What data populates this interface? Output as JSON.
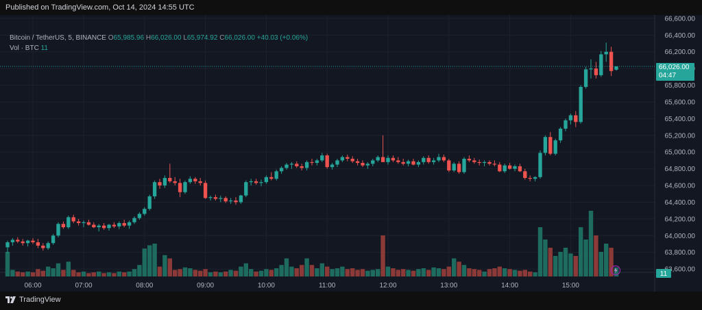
{
  "header": {
    "published": "Published on TradingView.com, Oct 14, 2024 14:55 UTC"
  },
  "legend": {
    "symbol": "Bitcoin / TetherUS, 5, BINANCE",
    "open_label": "O",
    "open": "65,985.96",
    "high_label": "H",
    "high": "66,026.00",
    "low_label": "L",
    "low": "65,974.92",
    "close_label": "C",
    "close": "66,026.00",
    "change": "+40.03 (+0.06%)",
    "volume_label": "Vol · BTC",
    "volume": "11"
  },
  "price_tag": {
    "price": "66,026.00",
    "countdown": "04:47"
  },
  "volume_tag": "11",
  "footer": {
    "brand": "TradingView"
  },
  "colors": {
    "up": "#26a69a",
    "down": "#ef5350",
    "volume_up": "#1e6b60",
    "volume_down": "#8c3a37",
    "grid": "#1e222d",
    "background": "#131722"
  },
  "chart_data": {
    "type": "candlestick",
    "symbol": "Bitcoin / TetherUS",
    "interval": "5",
    "exchange": "BINANCE",
    "x_ticks": [
      "06:00",
      "07:00",
      "08:00",
      "09:00",
      "10:00",
      "11:00",
      "12:00",
      "13:00",
      "14:00",
      "15:00"
    ],
    "y_ticks": [
      63600,
      63800,
      64000,
      64200,
      64400,
      64600,
      64800,
      65000,
      65200,
      65400,
      65600,
      65800,
      66000,
      66200,
      66400,
      66600
    ],
    "y_tick_labels": [
      "63,600.00",
      "63,800.00",
      "64,000.00",
      "64,200.00",
      "64,400.00",
      "64,600.00",
      "64,800.00",
      "65,000.00",
      "65,200.00",
      "65,400.00",
      "65,600.00",
      "65,800.00",
      "66,000.00",
      "66,200.00",
      "66,400.00",
      "66,600.00"
    ],
    "ylim": [
      63560,
      66640
    ],
    "current_price": 66026,
    "candles": [
      {
        "o": 63860,
        "h": 63940,
        "l": 63790,
        "c": 63920,
        "v": 30
      },
      {
        "o": 63920,
        "h": 63970,
        "l": 63880,
        "c": 63950,
        "v": 8
      },
      {
        "o": 63950,
        "h": 63980,
        "l": 63910,
        "c": 63930,
        "v": 6
      },
      {
        "o": 63930,
        "h": 63960,
        "l": 63880,
        "c": 63910,
        "v": 5
      },
      {
        "o": 63910,
        "h": 63950,
        "l": 63870,
        "c": 63940,
        "v": 6
      },
      {
        "o": 63940,
        "h": 63970,
        "l": 63900,
        "c": 63920,
        "v": 5
      },
      {
        "o": 63920,
        "h": 63960,
        "l": 63850,
        "c": 63880,
        "v": 9
      },
      {
        "o": 63880,
        "h": 63910,
        "l": 63820,
        "c": 63850,
        "v": 7
      },
      {
        "o": 63850,
        "h": 63930,
        "l": 63830,
        "c": 63910,
        "v": 12
      },
      {
        "o": 63910,
        "h": 64020,
        "l": 63890,
        "c": 64000,
        "v": 10
      },
      {
        "o": 64000,
        "h": 64160,
        "l": 63980,
        "c": 64140,
        "v": 16
      },
      {
        "o": 64140,
        "h": 64170,
        "l": 64080,
        "c": 64100,
        "v": 8
      },
      {
        "o": 64100,
        "h": 64240,
        "l": 64080,
        "c": 64220,
        "v": 18
      },
      {
        "o": 64220,
        "h": 64250,
        "l": 64150,
        "c": 64170,
        "v": 8
      },
      {
        "o": 64170,
        "h": 64200,
        "l": 64120,
        "c": 64150,
        "v": 5
      },
      {
        "o": 64150,
        "h": 64180,
        "l": 64100,
        "c": 64160,
        "v": 6
      },
      {
        "o": 64160,
        "h": 64190,
        "l": 64120,
        "c": 64130,
        "v": 4
      },
      {
        "o": 64130,
        "h": 64160,
        "l": 64090,
        "c": 64100,
        "v": 5
      },
      {
        "o": 64100,
        "h": 64140,
        "l": 64050,
        "c": 64120,
        "v": 6
      },
      {
        "o": 64120,
        "h": 64150,
        "l": 64070,
        "c": 64090,
        "v": 4
      },
      {
        "o": 64090,
        "h": 64140,
        "l": 64060,
        "c": 64130,
        "v": 5
      },
      {
        "o": 64130,
        "h": 64160,
        "l": 64090,
        "c": 64110,
        "v": 4
      },
      {
        "o": 64110,
        "h": 64170,
        "l": 64080,
        "c": 64150,
        "v": 6
      },
      {
        "o": 64150,
        "h": 64190,
        "l": 64100,
        "c": 64120,
        "v": 5
      },
      {
        "o": 64120,
        "h": 64180,
        "l": 64080,
        "c": 64160,
        "v": 6
      },
      {
        "o": 64160,
        "h": 64230,
        "l": 64140,
        "c": 64210,
        "v": 9
      },
      {
        "o": 64210,
        "h": 64280,
        "l": 64190,
        "c": 64260,
        "v": 14
      },
      {
        "o": 64260,
        "h": 64340,
        "l": 64240,
        "c": 64320,
        "v": 34
      },
      {
        "o": 64320,
        "h": 64490,
        "l": 64300,
        "c": 64470,
        "v": 38
      },
      {
        "o": 64470,
        "h": 64660,
        "l": 64440,
        "c": 64640,
        "v": 40
      },
      {
        "o": 64640,
        "h": 64680,
        "l": 64560,
        "c": 64600,
        "v": 12
      },
      {
        "o": 64600,
        "h": 64720,
        "l": 64570,
        "c": 64690,
        "v": 26
      },
      {
        "o": 64690,
        "h": 64860,
        "l": 64630,
        "c": 64650,
        "v": 22
      },
      {
        "o": 64650,
        "h": 64700,
        "l": 64600,
        "c": 64630,
        "v": 8
      },
      {
        "o": 64630,
        "h": 64680,
        "l": 64460,
        "c": 64520,
        "v": 9
      },
      {
        "o": 64520,
        "h": 64660,
        "l": 64500,
        "c": 64640,
        "v": 11
      },
      {
        "o": 64640,
        "h": 64710,
        "l": 64620,
        "c": 64680,
        "v": 10
      },
      {
        "o": 64680,
        "h": 64700,
        "l": 64620,
        "c": 64650,
        "v": 8
      },
      {
        "o": 64650,
        "h": 64690,
        "l": 64600,
        "c": 64630,
        "v": 7
      },
      {
        "o": 64630,
        "h": 64660,
        "l": 64440,
        "c": 64450,
        "v": 9
      },
      {
        "o": 64450,
        "h": 64480,
        "l": 64420,
        "c": 64460,
        "v": 5
      },
      {
        "o": 64460,
        "h": 64490,
        "l": 64420,
        "c": 64440,
        "v": 6
      },
      {
        "o": 64440,
        "h": 64480,
        "l": 64400,
        "c": 64450,
        "v": 5
      },
      {
        "o": 64450,
        "h": 64470,
        "l": 64390,
        "c": 64410,
        "v": 6
      },
      {
        "o": 64410,
        "h": 64450,
        "l": 64380,
        "c": 64420,
        "v": 8
      },
      {
        "o": 64420,
        "h": 64460,
        "l": 64370,
        "c": 64400,
        "v": 7
      },
      {
        "o": 64400,
        "h": 64490,
        "l": 64380,
        "c": 64480,
        "v": 12
      },
      {
        "o": 64480,
        "h": 64660,
        "l": 64460,
        "c": 64640,
        "v": 16
      },
      {
        "o": 64640,
        "h": 64680,
        "l": 64600,
        "c": 64650,
        "v": 9
      },
      {
        "o": 64650,
        "h": 64680,
        "l": 64610,
        "c": 64630,
        "v": 6
      },
      {
        "o": 64630,
        "h": 64670,
        "l": 64590,
        "c": 64640,
        "v": 7
      },
      {
        "o": 64640,
        "h": 64720,
        "l": 64620,
        "c": 64700,
        "v": 9
      },
      {
        "o": 64700,
        "h": 64760,
        "l": 64660,
        "c": 64680,
        "v": 8
      },
      {
        "o": 64680,
        "h": 64790,
        "l": 64660,
        "c": 64770,
        "v": 10
      },
      {
        "o": 64770,
        "h": 64830,
        "l": 64740,
        "c": 64810,
        "v": 14
      },
      {
        "o": 64810,
        "h": 64870,
        "l": 64790,
        "c": 64850,
        "v": 22
      },
      {
        "o": 64850,
        "h": 64880,
        "l": 64800,
        "c": 64860,
        "v": 12
      },
      {
        "o": 64860,
        "h": 64890,
        "l": 64810,
        "c": 64830,
        "v": 10
      },
      {
        "o": 64830,
        "h": 64860,
        "l": 64780,
        "c": 64810,
        "v": 14
      },
      {
        "o": 64810,
        "h": 64900,
        "l": 64780,
        "c": 64880,
        "v": 22
      },
      {
        "o": 64880,
        "h": 64920,
        "l": 64840,
        "c": 64870,
        "v": 14
      },
      {
        "o": 64870,
        "h": 64920,
        "l": 64840,
        "c": 64900,
        "v": 10
      },
      {
        "o": 64900,
        "h": 64990,
        "l": 64880,
        "c": 64960,
        "v": 16
      },
      {
        "o": 64960,
        "h": 64980,
        "l": 64800,
        "c": 64820,
        "v": 12
      },
      {
        "o": 64820,
        "h": 64870,
        "l": 64790,
        "c": 64850,
        "v": 9
      },
      {
        "o": 64850,
        "h": 64920,
        "l": 64820,
        "c": 64900,
        "v": 10
      },
      {
        "o": 64900,
        "h": 64960,
        "l": 64880,
        "c": 64940,
        "v": 12
      },
      {
        "o": 64940,
        "h": 64970,
        "l": 64890,
        "c": 64920,
        "v": 9
      },
      {
        "o": 64920,
        "h": 64950,
        "l": 64870,
        "c": 64890,
        "v": 10
      },
      {
        "o": 64890,
        "h": 64920,
        "l": 64840,
        "c": 64870,
        "v": 8
      },
      {
        "o": 64870,
        "h": 64900,
        "l": 64820,
        "c": 64840,
        "v": 9
      },
      {
        "o": 64840,
        "h": 64880,
        "l": 64800,
        "c": 64860,
        "v": 7
      },
      {
        "o": 64860,
        "h": 64920,
        "l": 64830,
        "c": 64900,
        "v": 8
      },
      {
        "o": 64900,
        "h": 64960,
        "l": 64880,
        "c": 64940,
        "v": 9
      },
      {
        "o": 64940,
        "h": 65200,
        "l": 64880,
        "c": 64880,
        "v": 50
      },
      {
        "o": 64880,
        "h": 64960,
        "l": 64850,
        "c": 64930,
        "v": 12
      },
      {
        "o": 64930,
        "h": 64960,
        "l": 64880,
        "c": 64900,
        "v": 10
      },
      {
        "o": 64900,
        "h": 64940,
        "l": 64860,
        "c": 64880,
        "v": 8
      },
      {
        "o": 64880,
        "h": 64920,
        "l": 64840,
        "c": 64860,
        "v": 9
      },
      {
        "o": 64860,
        "h": 64910,
        "l": 64830,
        "c": 64890,
        "v": 8
      },
      {
        "o": 64890,
        "h": 64920,
        "l": 64840,
        "c": 64850,
        "v": 7
      },
      {
        "o": 64850,
        "h": 64900,
        "l": 64820,
        "c": 64880,
        "v": 9
      },
      {
        "o": 64880,
        "h": 64950,
        "l": 64850,
        "c": 64930,
        "v": 10
      },
      {
        "o": 64930,
        "h": 64960,
        "l": 64860,
        "c": 64880,
        "v": 8
      },
      {
        "o": 64880,
        "h": 64930,
        "l": 64850,
        "c": 64900,
        "v": 11
      },
      {
        "o": 64900,
        "h": 64980,
        "l": 64880,
        "c": 64940,
        "v": 10
      },
      {
        "o": 64940,
        "h": 64970,
        "l": 64880,
        "c": 64900,
        "v": 9
      },
      {
        "o": 64900,
        "h": 64920,
        "l": 64760,
        "c": 64780,
        "v": 12
      },
      {
        "o": 64780,
        "h": 64880,
        "l": 64760,
        "c": 64860,
        "v": 22
      },
      {
        "o": 64860,
        "h": 64890,
        "l": 64740,
        "c": 64760,
        "v": 18
      },
      {
        "o": 64760,
        "h": 64940,
        "l": 64740,
        "c": 64920,
        "v": 14
      },
      {
        "o": 64920,
        "h": 64960,
        "l": 64880,
        "c": 64900,
        "v": 10
      },
      {
        "o": 64900,
        "h": 64930,
        "l": 64860,
        "c": 64880,
        "v": 9
      },
      {
        "o": 64880,
        "h": 64910,
        "l": 64840,
        "c": 64870,
        "v": 8
      },
      {
        "o": 64870,
        "h": 64900,
        "l": 64830,
        "c": 64880,
        "v": 6
      },
      {
        "o": 64880,
        "h": 64900,
        "l": 64840,
        "c": 64860,
        "v": 9
      },
      {
        "o": 64860,
        "h": 64900,
        "l": 64830,
        "c": 64850,
        "v": 10
      },
      {
        "o": 64850,
        "h": 64880,
        "l": 64760,
        "c": 64770,
        "v": 12
      },
      {
        "o": 64770,
        "h": 64860,
        "l": 64750,
        "c": 64840,
        "v": 10
      },
      {
        "o": 64840,
        "h": 64870,
        "l": 64790,
        "c": 64800,
        "v": 9
      },
      {
        "o": 64800,
        "h": 64850,
        "l": 64770,
        "c": 64830,
        "v": 8
      },
      {
        "o": 64830,
        "h": 64860,
        "l": 64760,
        "c": 64770,
        "v": 7
      },
      {
        "o": 64770,
        "h": 64800,
        "l": 64670,
        "c": 64690,
        "v": 8
      },
      {
        "o": 64690,
        "h": 64720,
        "l": 64650,
        "c": 64680,
        "v": 6
      },
      {
        "o": 64680,
        "h": 64710,
        "l": 64650,
        "c": 64700,
        "v": 5
      },
      {
        "o": 64700,
        "h": 65020,
        "l": 64680,
        "c": 64990,
        "v": 60
      },
      {
        "o": 64990,
        "h": 65200,
        "l": 64960,
        "c": 65180,
        "v": 45
      },
      {
        "o": 65180,
        "h": 65240,
        "l": 64960,
        "c": 64980,
        "v": 35
      },
      {
        "o": 64980,
        "h": 65160,
        "l": 64960,
        "c": 65140,
        "v": 25
      },
      {
        "o": 65140,
        "h": 65300,
        "l": 65110,
        "c": 65280,
        "v": 30
      },
      {
        "o": 65280,
        "h": 65400,
        "l": 65250,
        "c": 65380,
        "v": 35
      },
      {
        "o": 65380,
        "h": 65460,
        "l": 65330,
        "c": 65440,
        "v": 28
      },
      {
        "o": 65440,
        "h": 65490,
        "l": 65300,
        "c": 65360,
        "v": 25
      },
      {
        "o": 65360,
        "h": 65800,
        "l": 65340,
        "c": 65780,
        "v": 60
      },
      {
        "o": 65780,
        "h": 66020,
        "l": 65760,
        "c": 65990,
        "v": 45
      },
      {
        "o": 65990,
        "h": 66110,
        "l": 65880,
        "c": 66000,
        "v": 80
      },
      {
        "o": 66000,
        "h": 66080,
        "l": 65880,
        "c": 65920,
        "v": 50
      },
      {
        "o": 65920,
        "h": 66210,
        "l": 65900,
        "c": 66170,
        "v": 30
      },
      {
        "o": 66170,
        "h": 66310,
        "l": 66080,
        "c": 66200,
        "v": 40
      },
      {
        "o": 66200,
        "h": 66260,
        "l": 65910,
        "c": 65970,
        "v": 35
      },
      {
        "o": 65985.96,
        "h": 66026,
        "l": 65974.92,
        "c": 66026,
        "v": 11
      }
    ]
  }
}
